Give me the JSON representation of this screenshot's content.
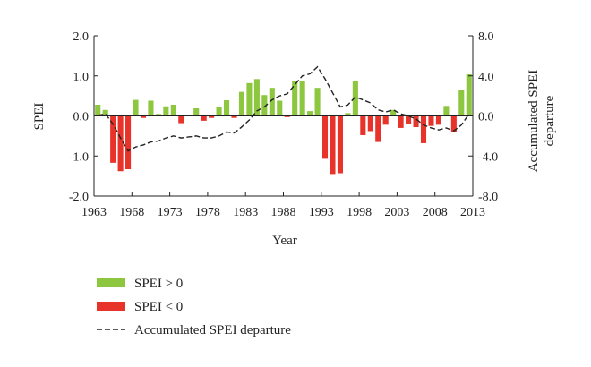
{
  "chart_data": {
    "type": "bar",
    "xlabel": "Year",
    "ylabel_left": "SPEI",
    "ylabel_right": "Accumulated SPEI departure",
    "ylim_left": [
      -2.0,
      2.0
    ],
    "ylim_right": [
      -8.0,
      8.0
    ],
    "left_ticks": [
      "2.0",
      "1.0",
      "0.0",
      "-1.0",
      "-2.0"
    ],
    "left_tick_values": [
      2.0,
      1.0,
      0.0,
      -1.0,
      -2.0
    ],
    "right_ticks": [
      "8.0",
      "4.0",
      "0.0",
      "-4.0",
      "-8.0"
    ],
    "right_tick_values": [
      8.0,
      4.0,
      0.0,
      -4.0,
      -8.0
    ],
    "x_ticks": [
      "1963",
      "1968",
      "1973",
      "1978",
      "1983",
      "1988",
      "1993",
      "1998",
      "2003",
      "2008",
      "2013"
    ],
    "x_tick_values": [
      1963,
      1968,
      1973,
      1978,
      1983,
      1988,
      1993,
      1998,
      2003,
      2008,
      2013
    ],
    "xlim": [
      1963,
      2013
    ],
    "colors": {
      "positive": "#8dc63f",
      "negative": "#e8332a",
      "line": "#222222"
    },
    "years": [
      1964,
      1965,
      1966,
      1967,
      1968,
      1969,
      1970,
      1971,
      1972,
      1973,
      1974,
      1975,
      1976,
      1977,
      1978,
      1979,
      1980,
      1981,
      1982,
      1983,
      1984,
      1985,
      1986,
      1987,
      1988,
      1989,
      1990,
      1991,
      1992,
      1993,
      1994,
      1995,
      1996,
      1997,
      1998,
      1999,
      2000,
      2001,
      2002,
      2003,
      2004,
      2005,
      2006,
      2007,
      2008,
      2009,
      2010,
      2011,
      2012,
      2013
    ],
    "spei": [
      0.28,
      0.15,
      -1.17,
      -1.38,
      -1.33,
      0.4,
      -0.05,
      0.38,
      0.05,
      0.24,
      0.28,
      -0.18,
      0.02,
      0.19,
      -0.12,
      -0.05,
      0.22,
      0.39,
      -0.05,
      0.6,
      0.82,
      0.92,
      0.52,
      0.7,
      0.38,
      -0.03,
      0.87,
      0.87,
      0.12,
      0.7,
      -1.07,
      -1.45,
      -1.43,
      0.07,
      0.87,
      -0.48,
      -0.38,
      -0.65,
      -0.22,
      0.15,
      -0.3,
      -0.2,
      -0.28,
      -0.68,
      -0.25,
      -0.22,
      0.25,
      -0.4,
      0.64,
      1.04
    ],
    "accumulated": [
      0.05,
      0.2,
      -0.8,
      -2.2,
      -3.5,
      -3.1,
      -2.9,
      -2.6,
      -2.5,
      -2.2,
      -2.0,
      -2.2,
      -2.1,
      -2.0,
      -2.2,
      -2.2,
      -2.0,
      -1.6,
      -1.7,
      -1.1,
      -0.4,
      0.5,
      0.9,
      1.6,
      2.0,
      2.2,
      3.1,
      4.0,
      4.2,
      4.9,
      3.7,
      2.3,
      0.9,
      1.1,
      1.9,
      1.6,
      1.3,
      0.6,
      0.4,
      0.6,
      0.2,
      0.0,
      -0.3,
      -0.9,
      -1.2,
      -1.4,
      -1.2,
      -1.5,
      -0.9,
      0.2
    ],
    "legend": [
      {
        "label": "SPEI > 0",
        "type": "bar",
        "color": "#8dc63f"
      },
      {
        "label": "SPEI < 0",
        "type": "bar",
        "color": "#e8332a"
      },
      {
        "label": "Accumulated SPEI departure",
        "type": "line",
        "color": "#222222"
      }
    ],
    "legend_position": "bottom-left"
  }
}
